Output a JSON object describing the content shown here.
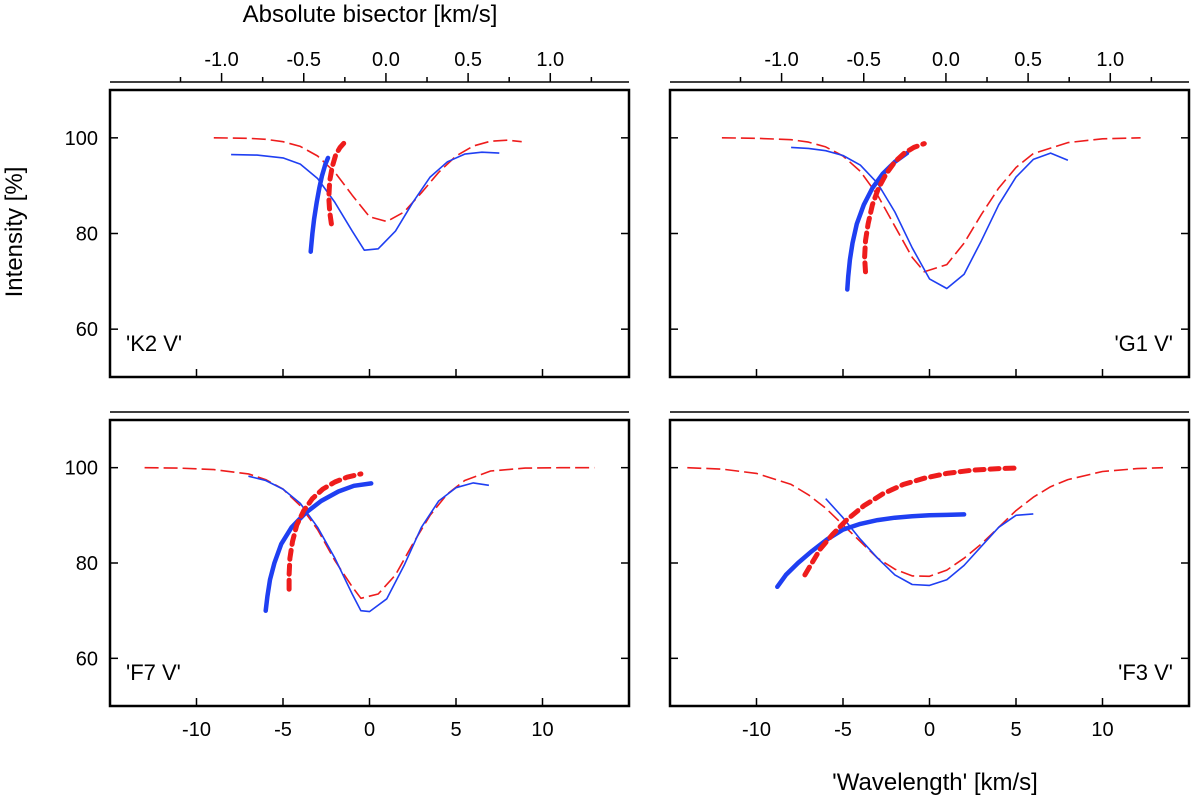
{
  "figure": {
    "top_axis_title": "Absolute bisector [km/s]",
    "bottom_axis_title": "'Wavelength' [km/s]",
    "y_axis_title": "Intensity [%]"
  },
  "colors": {
    "blue": "#1f3ff2",
    "red": "#ee1c1c",
    "axis": "#000000"
  },
  "chart_data": [
    {
      "type": "line",
      "panel": "K2 V",
      "label": "'K2 V'",
      "label_position": "bottom-left",
      "xlim": [
        -15,
        15
      ],
      "ylim": [
        50,
        110
      ],
      "yticks": [
        60,
        80,
        100
      ],
      "top_axis": {
        "ticks": [
          -1.0,
          -0.5,
          0.0,
          0.5,
          1.0
        ],
        "labels": [
          "-1.0",
          "-0.5",
          "0.0",
          "0.5",
          "1.0"
        ]
      },
      "series": [
        {
          "name": "profile-red-dashed",
          "color": "red",
          "style": "dashed",
          "width": "thin",
          "x": [
            -9,
            -7,
            -6,
            -5,
            -4,
            -3,
            -2,
            -1,
            0,
            1,
            2,
            3,
            4,
            5,
            6,
            7,
            8,
            8.8
          ],
          "y": [
            100,
            99.9,
            99.7,
            99.2,
            98.2,
            96.2,
            92.8,
            88.0,
            83.5,
            82.5,
            84.5,
            88.5,
            92.8,
            96.2,
            98.3,
            99.3,
            99.5,
            99.2
          ]
        },
        {
          "name": "profile-blue-solid",
          "color": "blue",
          "style": "solid",
          "width": "thin",
          "x": [
            -8,
            -6.5,
            -5,
            -4,
            -3,
            -2,
            -1,
            -0.3,
            0.5,
            1.5,
            2.5,
            3.5,
            4.5,
            5.5,
            6.5,
            7.5
          ],
          "y": [
            96.5,
            96.4,
            95.8,
            94.5,
            91.5,
            86.5,
            80.5,
            76.5,
            76.8,
            80.5,
            86.5,
            91.8,
            95.0,
            96.6,
            97.0,
            96.8
          ]
        },
        {
          "name": "bisector-blue",
          "color": "blue",
          "style": "solid",
          "width": "thick",
          "x": [
            -3.4,
            -3.35,
            -3.3,
            -3.2,
            -3.05,
            -2.9,
            -2.75,
            -2.55,
            -2.4
          ],
          "y": [
            76.2,
            78,
            80,
            83,
            86.5,
            89.5,
            92,
            94.5,
            95.8
          ]
        },
        {
          "name": "bisector-red",
          "color": "red",
          "style": "dashed",
          "width": "thick",
          "x": [
            -2.2,
            -2.3,
            -2.35,
            -2.3,
            -2.15,
            -1.95,
            -1.7,
            -1.45
          ],
          "y": [
            82,
            84.5,
            87.5,
            91,
            94,
            96.5,
            98,
            99
          ]
        }
      ]
    },
    {
      "type": "line",
      "panel": "G1 V",
      "label": "'G1 V'",
      "label_position": "bottom-right",
      "xlim": [
        -15,
        15
      ],
      "ylim": [
        50,
        110
      ],
      "yticks": [
        60,
        80,
        100
      ],
      "top_axis": {
        "ticks": [
          -1.0,
          -0.5,
          0.0,
          0.5,
          1.0
        ],
        "labels": [
          "-1.0",
          "-0.5",
          "0.0",
          "0.5",
          "1.0"
        ]
      },
      "series": [
        {
          "name": "profile-red-dashed",
          "color": "red",
          "style": "dashed",
          "width": "thin",
          "x": [
            -12,
            -10,
            -8,
            -7,
            -6,
            -5,
            -4,
            -3,
            -2,
            -1,
            -0.3,
            1,
            2,
            3,
            4,
            5,
            6,
            8,
            10,
            12.2
          ],
          "y": [
            100,
            99.9,
            99.6,
            99.1,
            98.1,
            96.2,
            93.0,
            88.0,
            81.5,
            75.0,
            72.0,
            73.5,
            78.0,
            84.0,
            89.5,
            93.8,
            96.7,
            99.0,
            99.8,
            100
          ]
        },
        {
          "name": "profile-blue-solid",
          "color": "blue",
          "style": "solid",
          "width": "thin",
          "x": [
            -8,
            -7,
            -6,
            -5,
            -4,
            -3,
            -2,
            -1,
            0,
            1,
            2,
            3,
            4,
            5,
            6,
            7,
            8
          ],
          "y": [
            98,
            97.8,
            97.3,
            96.3,
            94.3,
            90.5,
            84.5,
            77.0,
            70.5,
            68.5,
            71.5,
            78.5,
            86.0,
            91.8,
            95.5,
            96.8,
            95.3
          ]
        },
        {
          "name": "bisector-blue",
          "color": "blue",
          "style": "solid",
          "width": "thick",
          "x": [
            -4.75,
            -4.7,
            -4.6,
            -4.45,
            -4.2,
            -3.8,
            -3.3,
            -2.7,
            -2.0,
            -1.3
          ],
          "y": [
            68.3,
            71,
            74.5,
            78,
            82,
            86,
            89.5,
            92.5,
            95,
            96.8
          ]
        },
        {
          "name": "bisector-red",
          "color": "red",
          "style": "dashed",
          "width": "thick",
          "x": [
            -3.7,
            -3.75,
            -3.7,
            -3.55,
            -3.3,
            -2.95,
            -2.5,
            -2.0,
            -1.45,
            -0.9,
            -0.3
          ],
          "y": [
            72,
            75,
            78.5,
            82,
            86,
            89.5,
            92.5,
            95,
            96.8,
            98,
            98.8
          ]
        }
      ]
    },
    {
      "type": "line",
      "panel": "F7 V",
      "label": "'F7 V'",
      "label_position": "bottom-left",
      "xlim": [
        -15,
        15
      ],
      "ylim": [
        50,
        110
      ],
      "yticks": [
        60,
        80,
        100
      ],
      "xticks": [
        -10,
        -5,
        0,
        5,
        10
      ],
      "xtick_labels": [
        "-10",
        "-5",
        "0",
        "5",
        "10"
      ],
      "series": [
        {
          "name": "profile-red-dashed",
          "color": "red",
          "style": "dashed",
          "width": "thin",
          "x": [
            -13,
            -11,
            -9,
            -7,
            -6,
            -5,
            -4,
            -3,
            -2,
            -1,
            -0.5,
            0.5,
            1.5,
            2.5,
            3.5,
            4.5,
            5.5,
            7,
            9,
            11,
            13
          ],
          "y": [
            100,
            99.9,
            99.6,
            98.7,
            97.5,
            95.5,
            92.0,
            87.0,
            80.5,
            75.0,
            72.6,
            73.5,
            77.5,
            84.0,
            90.0,
            94.5,
            97.3,
            99.3,
            99.9,
            100,
            100
          ]
        },
        {
          "name": "profile-blue-solid",
          "color": "blue",
          "style": "solid",
          "width": "thin",
          "x": [
            -7,
            -6,
            -5,
            -4,
            -3,
            -2,
            -1,
            -0.5,
            0,
            1,
            2,
            3,
            4,
            5,
            6,
            6.9
          ],
          "y": [
            98.2,
            97.3,
            95.5,
            92.5,
            87.5,
            81.0,
            73.5,
            70.0,
            69.8,
            72.5,
            79.5,
            87.5,
            93.0,
            95.8,
            96.8,
            96.3
          ]
        },
        {
          "name": "bisector-blue",
          "color": "blue",
          "style": "solid",
          "width": "thick",
          "x": [
            -6.0,
            -5.9,
            -5.75,
            -5.5,
            -5.1,
            -4.5,
            -3.7,
            -2.8,
            -1.8,
            -0.9,
            0.1
          ],
          "y": [
            70,
            73,
            76.5,
            80,
            84,
            87.5,
            90.5,
            93,
            95,
            96.2,
            96.7
          ]
        },
        {
          "name": "bisector-red",
          "color": "red",
          "style": "dashed",
          "width": "thick",
          "x": [
            -4.65,
            -4.65,
            -4.6,
            -4.45,
            -4.2,
            -3.8,
            -3.3,
            -2.7,
            -2.0,
            -1.3,
            -0.5
          ],
          "y": [
            74.5,
            77.5,
            81,
            84.5,
            88,
            91,
            93.5,
            95.5,
            97,
            98,
            98.7
          ]
        }
      ]
    },
    {
      "type": "line",
      "panel": "F3 V",
      "label": "'F3 V'",
      "label_position": "bottom-right",
      "xlim": [
        -15,
        15
      ],
      "ylim": [
        50,
        110
      ],
      "yticks": [
        60,
        80,
        100
      ],
      "xticks": [
        -10,
        -5,
        0,
        5,
        10
      ],
      "xtick_labels": [
        "-10",
        "-5",
        "0",
        "5",
        "10"
      ],
      "series": [
        {
          "name": "profile-red-dashed",
          "color": "red",
          "style": "dashed",
          "width": "thin",
          "x": [
            -14,
            -12,
            -10,
            -8,
            -7,
            -6,
            -5,
            -4,
            -3,
            -2,
            -1,
            0,
            1,
            2,
            3,
            4,
            5,
            6,
            7,
            8,
            10,
            12,
            13.5
          ],
          "y": [
            100,
            99.7,
            98.8,
            96.5,
            94.3,
            91.5,
            88.0,
            84.5,
            81.0,
            78.7,
            77.3,
            77.2,
            78.5,
            81.0,
            84.0,
            87.5,
            91.0,
            93.8,
            96.0,
            97.5,
            99.2,
            99.8,
            100
          ]
        },
        {
          "name": "profile-blue-solid",
          "color": "blue",
          "style": "solid",
          "width": "thin",
          "x": [
            -6,
            -5,
            -4,
            -3,
            -2,
            -1,
            0,
            1,
            2,
            3,
            4,
            5,
            6
          ],
          "y": [
            93.5,
            89.5,
            85.0,
            81.0,
            77.5,
            75.5,
            75.3,
            76.5,
            79.5,
            83.5,
            87.5,
            90.0,
            90.3
          ]
        },
        {
          "name": "bisector-blue",
          "color": "blue",
          "style": "solid",
          "width": "thick",
          "x": [
            -8.8,
            -8.3,
            -7.6,
            -6.8,
            -5.9,
            -5.0,
            -4.0,
            -3.0,
            -2.0,
            -1.0,
            0.0,
            1.0,
            2.0
          ],
          "y": [
            75,
            77.5,
            80,
            82.5,
            85,
            87,
            88.2,
            89.0,
            89.5,
            89.8,
            90.0,
            90.1,
            90.2
          ]
        },
        {
          "name": "bisector-red",
          "color": "red",
          "style": "dashed",
          "width": "thick",
          "x": [
            -7.2,
            -6.8,
            -6.3,
            -5.6,
            -4.8,
            -3.8,
            -2.7,
            -1.5,
            -0.3,
            1.0,
            2.5,
            4.0,
            5.0
          ],
          "y": [
            77.5,
            80,
            83,
            86,
            89,
            92,
            94.5,
            96.5,
            97.8,
            98.8,
            99.5,
            99.8,
            99.9
          ]
        }
      ]
    }
  ]
}
